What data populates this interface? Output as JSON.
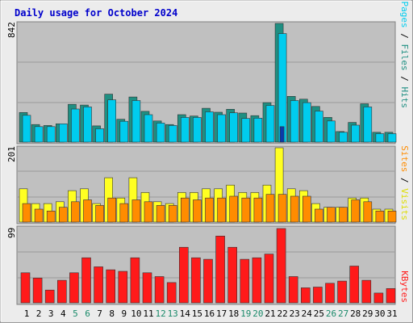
{
  "chart_data": {
    "type": "bar",
    "title": "Daily usage for October 2024",
    "days": [
      "1",
      "2",
      "3",
      "4",
      "5",
      "6",
      "7",
      "8",
      "9",
      "10",
      "11",
      "12",
      "13",
      "14",
      "15",
      "16",
      "17",
      "18",
      "19",
      "20",
      "21",
      "22",
      "23",
      "24",
      "25",
      "26",
      "27",
      "28",
      "29",
      "30",
      "31"
    ],
    "weekend_days": [
      "5",
      "6",
      "12",
      "13",
      "19",
      "20",
      "26",
      "27"
    ],
    "colors": {
      "hits": "#00ccee",
      "files": "#1f8f82",
      "pages": "#0a3aaa",
      "visits": "#ffff22",
      "sites": "#ff8c00",
      "kbytes": "#ff1a1a",
      "title_text": "#0000cc",
      "weekday_label": "#000000",
      "weekend_label": "#1a8a6a",
      "panel": "#c0c0c0",
      "page_bg": "#ececec"
    },
    "panels": {
      "top": {
        "max_label": "842",
        "ylim": [
          0,
          842
        ],
        "ylabel_parts": [
          {
            "text": "Pages",
            "color": "#00ccee"
          },
          {
            "text": " / ",
            "color": "#000000"
          },
          {
            "text": "Files",
            "color": "#1f8f82"
          },
          {
            "text": " / ",
            "color": "#000000"
          },
          {
            "text": "Hits",
            "color": "#1f8f82"
          }
        ],
        "series": [
          {
            "key": "files",
            "values": [
              210,
              125,
              118,
              130,
              268,
              263,
              115,
              340,
              162,
              320,
              218,
              150,
              125,
              195,
              185,
              240,
              212,
              233,
              206,
              188,
              280,
              842,
              325,
              305,
              253,
              175,
              75,
              140,
              272,
              70,
              70
            ]
          },
          {
            "key": "hits",
            "values": [
              190,
              110,
              110,
              130,
              235,
              250,
              95,
              300,
              148,
              295,
              195,
              135,
              118,
              175,
              175,
              215,
              195,
              208,
              168,
              170,
              260,
              770,
              295,
              280,
              220,
              150,
              70,
              120,
              250,
              60,
              60
            ]
          },
          {
            "key": "pages",
            "values": [
              0,
              0,
              0,
              0,
              0,
              0,
              0,
              0,
              0,
              0,
              0,
              0,
              0,
              0,
              0,
              0,
              0,
              0,
              0,
              0,
              0,
              110,
              0,
              0,
              0,
              0,
              0,
              0,
              0,
              0,
              0
            ]
          }
        ]
      },
      "middle": {
        "max_label": "201",
        "ylim": [
          0,
          201
        ],
        "ylabel_parts": [
          {
            "text": "Sites",
            "color": "#ff8c00"
          },
          {
            "text": " / ",
            "color": "#000000"
          },
          {
            "text": "Visits",
            "color": "#dddd00"
          }
        ],
        "series": [
          {
            "key": "visits",
            "values": [
              90,
              50,
              50,
              55,
              85,
              90,
              50,
              120,
              65,
              120,
              80,
              55,
              50,
              80,
              80,
              90,
              90,
              100,
              80,
              80,
              100,
              201,
              90,
              85,
              50,
              40,
              40,
              65,
              65,
              35,
              35
            ]
          },
          {
            "key": "sites",
            "values": [
              50,
              35,
              30,
              40,
              55,
              60,
              45,
              65,
              50,
              60,
              55,
              45,
              45,
              65,
              60,
              65,
              65,
              70,
              65,
              65,
              75,
              75,
              70,
              70,
              35,
              40,
              40,
              60,
              55,
              30,
              30
            ]
          }
        ]
      },
      "bottom": {
        "max_label": "99",
        "ylim": [
          0,
          99
        ],
        "ylabel_parts": [
          {
            "text": "KBytes",
            "color": "#ff1a1a"
          }
        ],
        "series": [
          {
            "key": "kbytes",
            "values": [
              40,
              33,
              17,
              30,
              40,
              60,
              48,
              44,
              42,
              60,
              40,
              35,
              27,
              74,
              60,
              58,
              89,
              74,
              58,
              60,
              65,
              99,
              35,
              20,
              21,
              26,
              29,
              49,
              30,
              13,
              19
            ]
          }
        ]
      }
    }
  }
}
